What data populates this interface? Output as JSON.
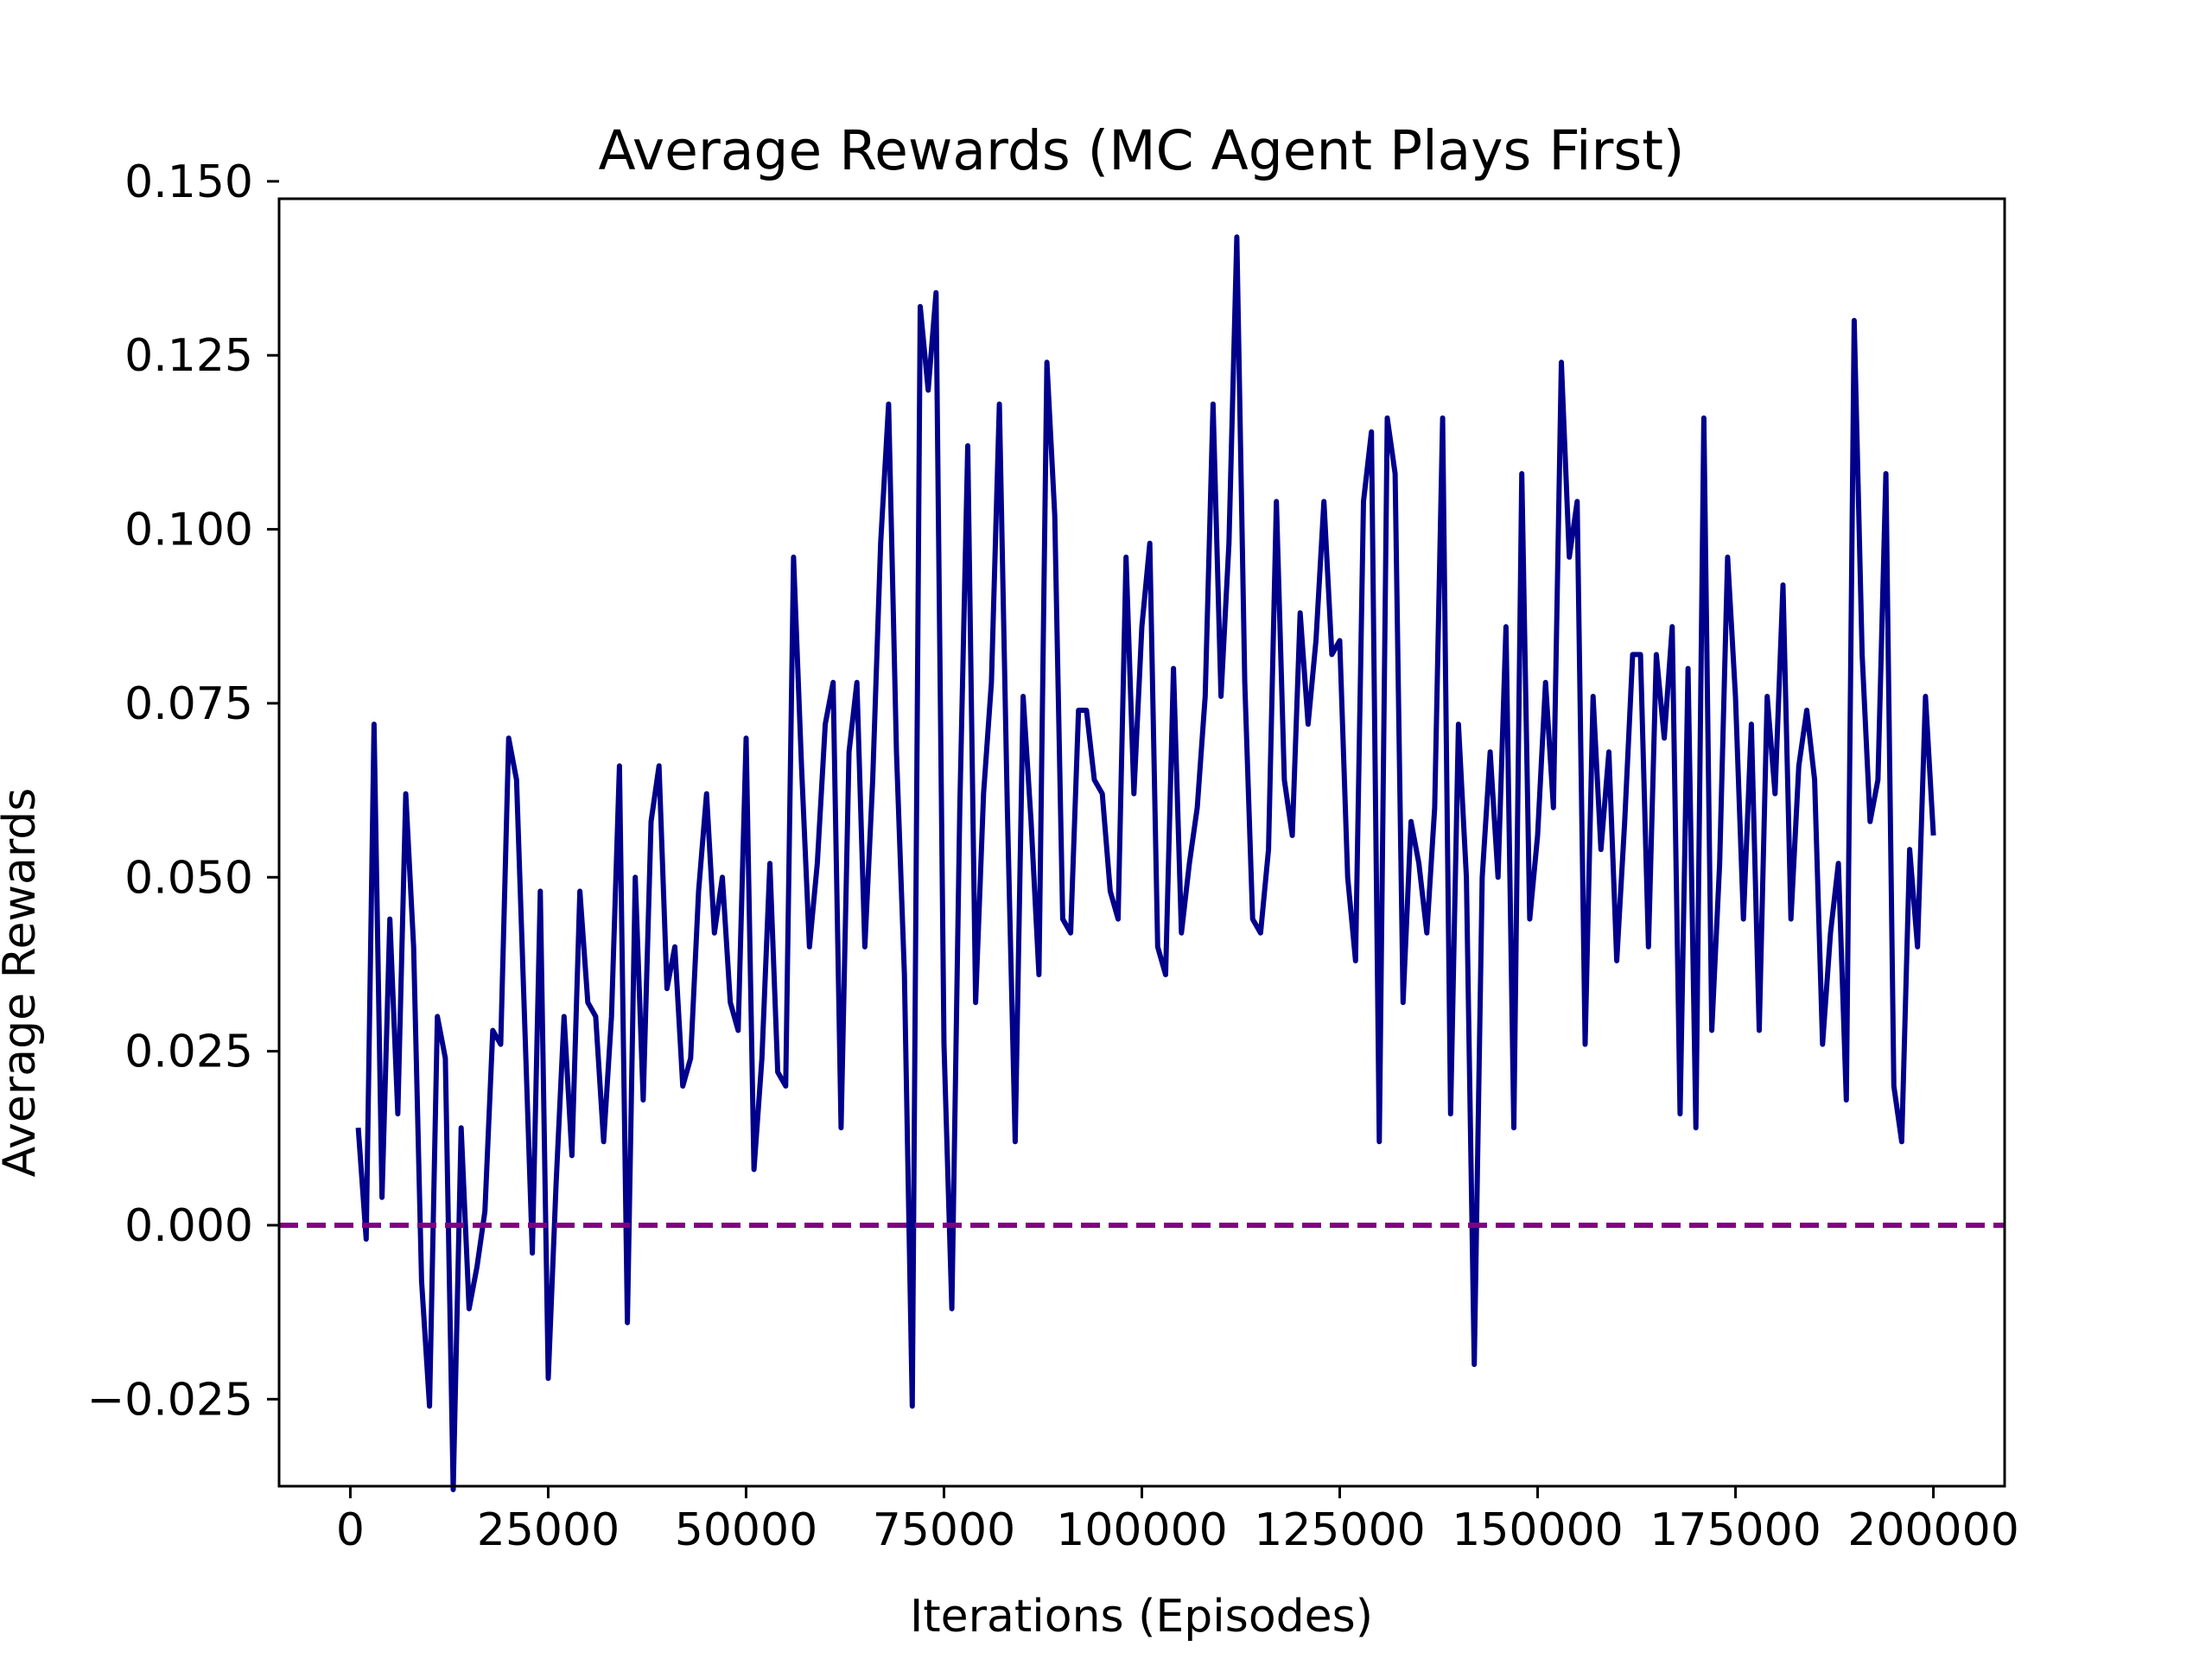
{
  "chart_data": {
    "type": "line",
    "title": "Average Rewards (MC Agent Plays First)",
    "xlabel": "Iterations (Episodes)",
    "ylabel": "Average Rewards",
    "xlim": [
      -9000,
      209000
    ],
    "ylim": [
      -0.0375,
      0.1475
    ],
    "xticks": [
      0,
      25000,
      50000,
      75000,
      100000,
      125000,
      150000,
      175000,
      200000
    ],
    "xtick_labels": [
      "0",
      "25000",
      "50000",
      "75000",
      "100000",
      "125000",
      "150000",
      "175000",
      "200000"
    ],
    "yticks": [
      -0.025,
      0.0,
      0.025,
      0.05,
      0.075,
      0.1,
      0.125,
      0.15
    ],
    "ytick_labels": [
      "−0.025",
      "0.000",
      "0.025",
      "0.050",
      "0.075",
      "0.100",
      "0.125",
      "0.150"
    ],
    "grid": false,
    "colors": {
      "series": "#00008b",
      "baseline": "#800080",
      "axes": "#000000"
    },
    "baseline": {
      "y": 0.0,
      "style": "dashed"
    },
    "series": [
      {
        "name": "Average Rewards",
        "x_start": 1000,
        "x_step": 1000,
        "values": [
          0.014,
          -0.002,
          0.072,
          0.004,
          0.044,
          0.016,
          0.062,
          0.04,
          -0.008,
          -0.026,
          0.03,
          0.024,
          -0.038,
          0.014,
          -0.012,
          -0.006,
          0.002,
          0.028,
          0.026,
          0.07,
          0.064,
          0.03,
          -0.004,
          0.048,
          -0.022,
          0.006,
          0.03,
          0.01,
          0.048,
          0.032,
          0.03,
          0.012,
          0.03,
          0.066,
          -0.014,
          0.05,
          0.018,
          0.058,
          0.066,
          0.034,
          0.04,
          0.02,
          0.024,
          0.048,
          0.062,
          0.042,
          0.05,
          0.032,
          0.028,
          0.07,
          0.008,
          0.024,
          0.052,
          0.022,
          0.02,
          0.096,
          0.066,
          0.04,
          0.052,
          0.072,
          0.078,
          0.014,
          0.068,
          0.078,
          0.04,
          0.064,
          0.098,
          0.118,
          0.068,
          0.036,
          -0.026,
          0.132,
          0.12,
          0.134,
          0.026,
          -0.012,
          0.06,
          0.112,
          0.032,
          0.062,
          0.078,
          0.118,
          0.06,
          0.012,
          0.076,
          0.058,
          0.036,
          0.124,
          0.102,
          0.044,
          0.042,
          0.074,
          0.074,
          0.064,
          0.062,
          0.048,
          0.044,
          0.096,
          0.062,
          0.086,
          0.098,
          0.04,
          0.036,
          0.08,
          0.042,
          0.052,
          0.06,
          0.076,
          0.118,
          0.076,
          0.098,
          0.142,
          0.078,
          0.044,
          0.042,
          0.054,
          0.104,
          0.064,
          0.056,
          0.088,
          0.072,
          0.084,
          0.104,
          0.082,
          0.084,
          0.05,
          0.038,
          0.104,
          0.114,
          0.012,
          0.116,
          0.108,
          0.032,
          0.058,
          0.052,
          0.042,
          0.06,
          0.116,
          0.016,
          0.072,
          0.05,
          -0.02,
          0.05,
          0.068,
          0.05,
          0.086,
          0.014,
          0.108,
          0.044,
          0.056,
          0.078,
          0.06,
          0.124,
          0.096,
          0.104,
          0.026,
          0.076,
          0.054,
          0.068,
          0.038,
          0.058,
          0.082,
          0.082,
          0.04,
          0.082,
          0.07,
          0.086,
          0.016,
          0.08,
          0.014,
          0.116,
          0.028,
          0.052,
          0.096,
          0.076,
          0.044,
          0.072,
          0.028,
          0.076,
          0.062,
          0.092,
          0.044,
          0.066,
          0.074,
          0.064,
          0.026,
          0.042,
          0.052,
          0.018,
          0.13,
          0.082,
          0.058,
          0.064,
          0.108,
          0.02,
          0.012,
          0.054,
          0.04,
          0.076,
          0.056
        ]
      }
    ]
  }
}
